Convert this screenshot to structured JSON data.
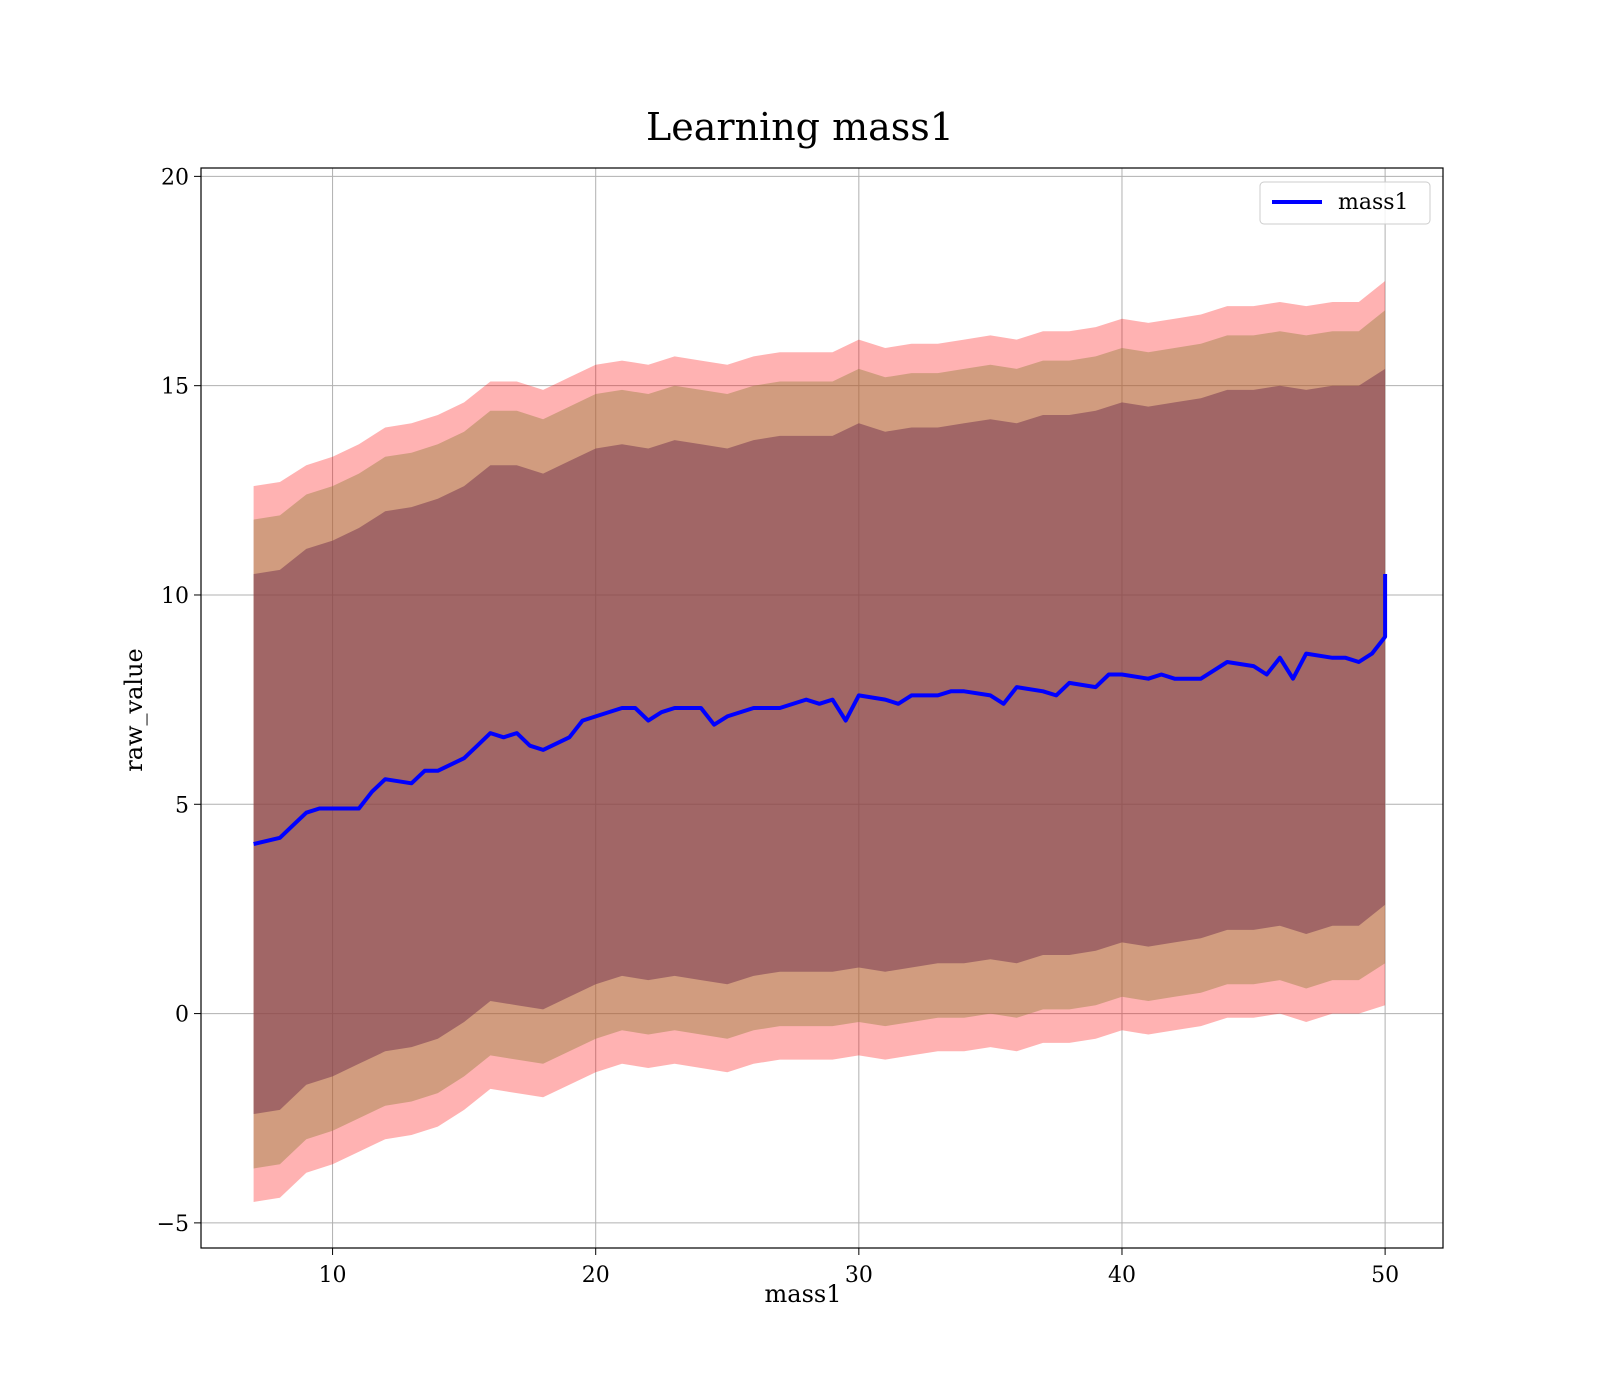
{
  "chart_data": {
    "type": "line",
    "title": "Learning mass1",
    "xlabel": "mass1",
    "ylabel": "raw_value",
    "xlim": [
      5,
      52.2
    ],
    "ylim": [
      -5.6,
      20.2
    ],
    "xticks": [
      10,
      20,
      30,
      40,
      50
    ],
    "yticks": [
      -5,
      0,
      5,
      10,
      15,
      20
    ],
    "ytick_labels": [
      "−5",
      "0",
      "5",
      "10",
      "15",
      "20"
    ],
    "grid": true,
    "legend_position": "top-right",
    "series": [
      {
        "name": "mass1",
        "color": "#0000ff",
        "x": [
          7,
          8,
          8.5,
          9,
          9.5,
          10,
          11,
          11.5,
          12,
          13,
          13.5,
          14,
          15,
          15.5,
          16,
          16.5,
          17,
          17.5,
          18,
          19,
          19.5,
          20,
          21,
          21.5,
          22,
          22.5,
          23,
          24,
          24.5,
          25,
          26,
          26.5,
          27,
          28,
          28.5,
          29,
          29.5,
          30,
          31,
          31.5,
          32,
          33,
          33.5,
          34,
          35,
          35.5,
          36,
          37,
          37.5,
          38,
          39,
          39.5,
          40,
          41,
          41.5,
          42,
          43,
          43.5,
          44,
          45,
          45.5,
          46,
          46.5,
          47,
          48,
          48.5,
          49,
          49.5,
          50,
          50
        ],
        "y": [
          4.05,
          4.2,
          4.5,
          4.8,
          4.9,
          4.9,
          4.9,
          5.3,
          5.6,
          5.5,
          5.8,
          5.8,
          6.1,
          6.4,
          6.7,
          6.6,
          6.7,
          6.4,
          6.3,
          6.6,
          7.0,
          7.1,
          7.3,
          7.3,
          7.0,
          7.2,
          7.3,
          7.3,
          6.9,
          7.1,
          7.3,
          7.3,
          7.3,
          7.5,
          7.4,
          7.5,
          7.0,
          7.6,
          7.5,
          7.4,
          7.6,
          7.6,
          7.7,
          7.7,
          7.6,
          7.4,
          7.8,
          7.7,
          7.6,
          7.9,
          7.8,
          8.1,
          8.1,
          8.0,
          8.1,
          8.0,
          8.0,
          8.2,
          8.4,
          8.3,
          8.1,
          8.5,
          8.0,
          8.6,
          8.5,
          8.5,
          8.4,
          8.6,
          9.0,
          10.5
        ]
      }
    ],
    "bands": [
      {
        "color": "#ff0000",
        "opacity": 0.3,
        "x": [
          7,
          8,
          9,
          10,
          11,
          12,
          13,
          14,
          15,
          16,
          17,
          18,
          19,
          20,
          21,
          22,
          23,
          24,
          25,
          26,
          27,
          28,
          29,
          30,
          31,
          32,
          33,
          34,
          35,
          36,
          37,
          38,
          39,
          40,
          41,
          42,
          43,
          44,
          45,
          46,
          47,
          48,
          49,
          50
        ],
        "upper": [
          12.6,
          12.7,
          13.1,
          13.3,
          13.6,
          14.0,
          14.1,
          14.3,
          14.6,
          15.1,
          15.1,
          14.9,
          15.2,
          15.5,
          15.6,
          15.5,
          15.7,
          15.6,
          15.5,
          15.7,
          15.8,
          15.8,
          15.8,
          16.1,
          15.9,
          16.0,
          16.0,
          16.1,
          16.2,
          16.1,
          16.3,
          16.3,
          16.4,
          16.6,
          16.5,
          16.6,
          16.7,
          16.9,
          16.9,
          17.0,
          16.9,
          17.0,
          17.0,
          17.5
        ],
        "lower": [
          -4.5,
          -4.4,
          -3.8,
          -3.6,
          -3.3,
          -3.0,
          -2.9,
          -2.7,
          -2.3,
          -1.8,
          -1.9,
          -2.0,
          -1.7,
          -1.4,
          -1.2,
          -1.3,
          -1.2,
          -1.3,
          -1.4,
          -1.2,
          -1.1,
          -1.1,
          -1.1,
          -1.0,
          -1.1,
          -1.0,
          -0.9,
          -0.9,
          -0.8,
          -0.9,
          -0.7,
          -0.7,
          -0.6,
          -0.4,
          -0.5,
          -0.4,
          -0.3,
          -0.1,
          -0.1,
          0.0,
          -0.2,
          0.0,
          0.0,
          0.2
        ]
      },
      {
        "color": "#998040",
        "opacity": 0.45,
        "x": [
          7,
          8,
          9,
          10,
          11,
          12,
          13,
          14,
          15,
          16,
          17,
          18,
          19,
          20,
          21,
          22,
          23,
          24,
          25,
          26,
          27,
          28,
          29,
          30,
          31,
          32,
          33,
          34,
          35,
          36,
          37,
          38,
          39,
          40,
          41,
          42,
          43,
          44,
          45,
          46,
          47,
          48,
          49,
          50
        ],
        "upper": [
          11.8,
          11.9,
          12.4,
          12.6,
          12.9,
          13.3,
          13.4,
          13.6,
          13.9,
          14.4,
          14.4,
          14.2,
          14.5,
          14.8,
          14.9,
          14.8,
          15.0,
          14.9,
          14.8,
          15.0,
          15.1,
          15.1,
          15.1,
          15.4,
          15.2,
          15.3,
          15.3,
          15.4,
          15.5,
          15.4,
          15.6,
          15.6,
          15.7,
          15.9,
          15.8,
          15.9,
          16.0,
          16.2,
          16.2,
          16.3,
          16.2,
          16.3,
          16.3,
          16.8
        ],
        "lower": [
          -3.7,
          -3.6,
          -3.0,
          -2.8,
          -2.5,
          -2.2,
          -2.1,
          -1.9,
          -1.5,
          -1.0,
          -1.1,
          -1.2,
          -0.9,
          -0.6,
          -0.4,
          -0.5,
          -0.4,
          -0.5,
          -0.6,
          -0.4,
          -0.3,
          -0.3,
          -0.3,
          -0.2,
          -0.3,
          -0.2,
          -0.1,
          -0.1,
          0.0,
          -0.1,
          0.1,
          0.1,
          0.2,
          0.4,
          0.3,
          0.4,
          0.5,
          0.7,
          0.7,
          0.8,
          0.6,
          0.8,
          0.8,
          1.2
        ]
      },
      {
        "color": "#7a3a52",
        "opacity": 0.55,
        "x": [
          7,
          8,
          9,
          10,
          11,
          12,
          13,
          14,
          15,
          16,
          17,
          18,
          19,
          20,
          21,
          22,
          23,
          24,
          25,
          26,
          27,
          28,
          29,
          30,
          31,
          32,
          33,
          34,
          35,
          36,
          37,
          38,
          39,
          40,
          41,
          42,
          43,
          44,
          45,
          46,
          47,
          48,
          49,
          50
        ],
        "upper": [
          10.5,
          10.6,
          11.1,
          11.3,
          11.6,
          12.0,
          12.1,
          12.3,
          12.6,
          13.1,
          13.1,
          12.9,
          13.2,
          13.5,
          13.6,
          13.5,
          13.7,
          13.6,
          13.5,
          13.7,
          13.8,
          13.8,
          13.8,
          14.1,
          13.9,
          14.0,
          14.0,
          14.1,
          14.2,
          14.1,
          14.3,
          14.3,
          14.4,
          14.6,
          14.5,
          14.6,
          14.7,
          14.9,
          14.9,
          15.0,
          14.9,
          15.0,
          15.0,
          15.4
        ],
        "lower": [
          -2.4,
          -2.3,
          -1.7,
          -1.5,
          -1.2,
          -0.9,
          -0.8,
          -0.6,
          -0.2,
          0.3,
          0.2,
          0.1,
          0.4,
          0.7,
          0.9,
          0.8,
          0.9,
          0.8,
          0.7,
          0.9,
          1.0,
          1.0,
          1.0,
          1.1,
          1.0,
          1.1,
          1.2,
          1.2,
          1.3,
          1.2,
          1.4,
          1.4,
          1.5,
          1.7,
          1.6,
          1.7,
          1.8,
          2.0,
          2.0,
          2.1,
          1.9,
          2.1,
          2.1,
          2.6
        ]
      }
    ]
  }
}
